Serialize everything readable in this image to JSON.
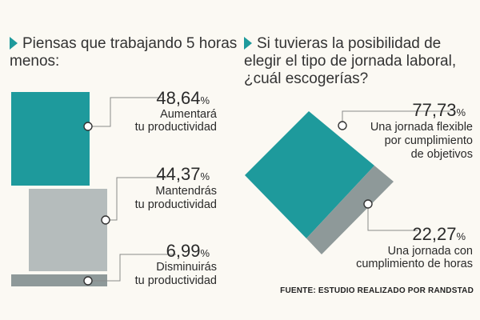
{
  "questions": {
    "left": "Piensas que trabajando 5 horas menos:",
    "right": "Si tuvieras la posibilidad de elegir el tipo de jornada laboral, ¿cuál escogerías?"
  },
  "source": "FUENTE: ESTUDIO REALIZADO POR RANDSTAD",
  "colors": {
    "teal": "#1e9a9c",
    "light_gray": "#b5bcbc",
    "dark_gray": "#8e9999",
    "line": "#8a8a8a"
  },
  "chart_data": [
    {
      "type": "area-proportional",
      "categories": [
        "Aumentará tu productividad",
        "Mantendrás tu productividad",
        "Disminuirás tu productividad"
      ],
      "values": [
        48.64,
        44.37,
        6.99
      ],
      "value_labels": [
        "48,64",
        "44,37",
        "6,99"
      ],
      "unit": "%",
      "label_lines": [
        [
          "Aumentará",
          "tu productividad"
        ],
        [
          "Mantendrás",
          "tu productividad"
        ],
        [
          "Disminuirás",
          "tu productividad"
        ]
      ]
    },
    {
      "type": "area-proportional",
      "categories": [
        "Una jornada flexible por cumplimiento de objetivos",
        "Una jornada con cumplimiento de horas"
      ],
      "values": [
        77.73,
        22.27
      ],
      "value_labels": [
        "77,73",
        "22,27"
      ],
      "unit": "%",
      "label_lines": [
        [
          "Una jornada flexible",
          "por cumplimiento",
          "de objetivos"
        ],
        [
          "Una jornada con",
          "cumplimiento de horas"
        ]
      ]
    }
  ]
}
